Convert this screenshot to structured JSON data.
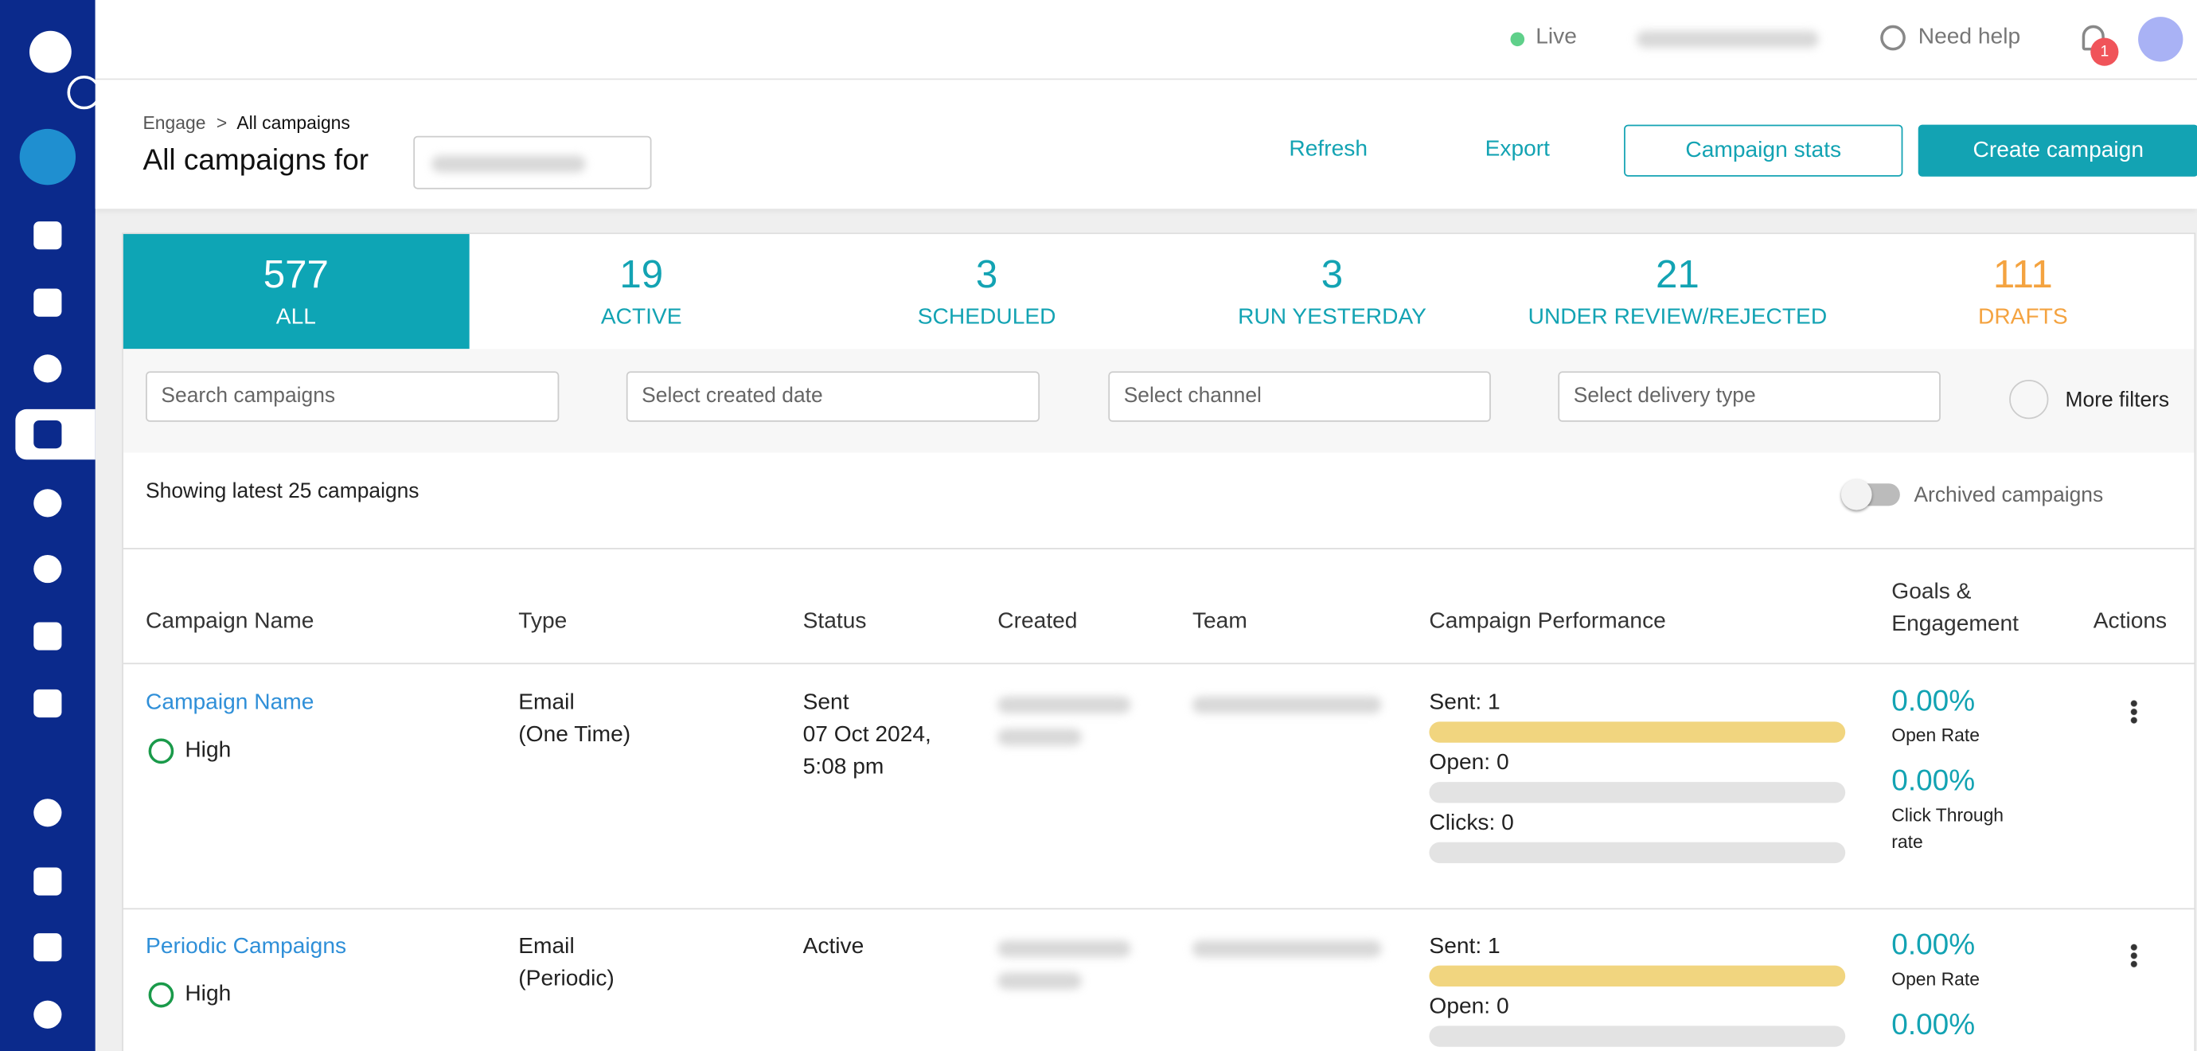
{
  "topbar": {
    "status": "Live",
    "help": "Need help",
    "notifications": "1"
  },
  "header": {
    "breadcrumb": [
      "Engage",
      ">",
      "All campaigns"
    ],
    "title": "All campaigns for",
    "actions": [
      "Refresh",
      "Export",
      "Campaign stats",
      "Create campaign"
    ]
  },
  "tabs": [
    {
      "count": "577",
      "label": "ALL"
    },
    {
      "count": "19",
      "label": "ACTIVE"
    },
    {
      "count": "3",
      "label": "SCHEDULED"
    },
    {
      "count": "3",
      "label": "RUN YESTERDAY"
    },
    {
      "count": "21",
      "label": "UNDER REVIEW/REJECTED"
    },
    {
      "count": "111",
      "label": "DRAFTS"
    }
  ],
  "filters": {
    "search": "Search campaigns",
    "date": "Select created date",
    "channel": "Select channel",
    "delivery": "Select delivery type",
    "more": "More filters"
  },
  "summary": "Showing latest 25 campaigns",
  "archived": "Archived campaigns",
  "table": {
    "columns": [
      "Campaign Name",
      "Type",
      "Status",
      "Created",
      "Team",
      "Campaign Performance",
      "Goals & Engagement",
      "Actions"
    ],
    "rows": [
      {
        "name": "Campaign Name",
        "priority": "High",
        "type": [
          "Email",
          "(One Time)"
        ],
        "status": [
          "Sent",
          "07 Oct 2024,",
          "5:08 pm"
        ],
        "performance": [
          "Sent: 1",
          "Open: 0",
          "Clicks: 0"
        ],
        "goals": [
          {
            "value": "0.00%",
            "label": "Open Rate"
          },
          {
            "value": "0.00%",
            "label": "Click Through rate"
          }
        ]
      },
      {
        "name": "Periodic Campaigns",
        "priority": "High",
        "type": [
          "Email",
          "(Periodic)"
        ],
        "status": [
          "Active"
        ],
        "performance": [
          "Sent: 1",
          "Open: 0"
        ],
        "goals": [
          {
            "value": "0.00%",
            "label": "Open Rate"
          },
          {
            "value": "0.00%",
            "label": ""
          }
        ]
      }
    ]
  }
}
